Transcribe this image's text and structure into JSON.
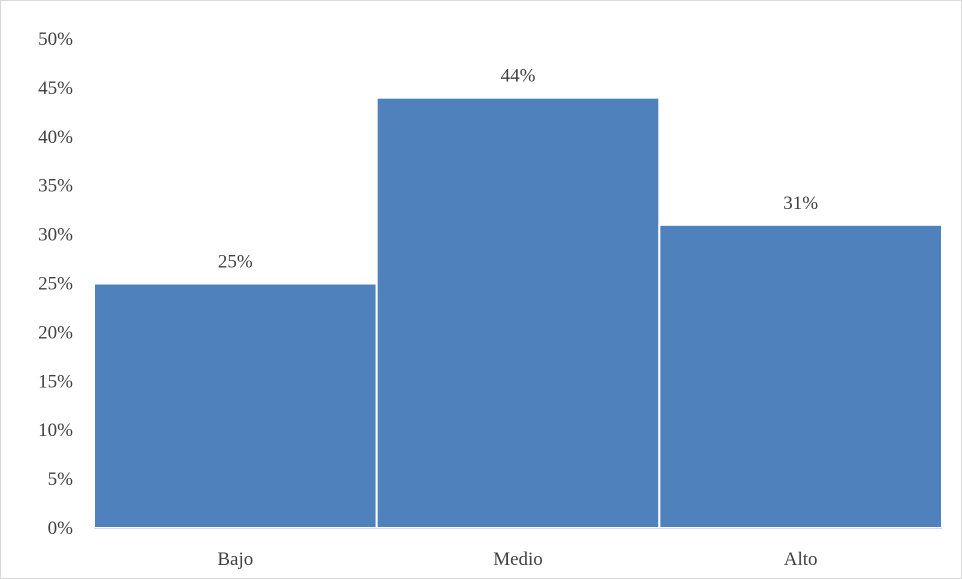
{
  "chart_data": {
    "type": "bar",
    "title": "",
    "xlabel": "",
    "ylabel": "",
    "categories": [
      "Bajo",
      "Medio",
      "Alto"
    ],
    "values": [
      25,
      44,
      31
    ],
    "data_labels": [
      "25%",
      "44%",
      "31%"
    ],
    "ylim": [
      0,
      50
    ],
    "y_ticks": [
      0,
      5,
      10,
      15,
      20,
      25,
      30,
      35,
      40,
      45,
      50
    ],
    "y_tick_labels": [
      "0%",
      "5%",
      "10%",
      "15%",
      "20%",
      "25%",
      "30%",
      "35%",
      "40%",
      "45%",
      "50%"
    ],
    "grid": false,
    "legend": "none",
    "colors": {
      "bar": "#4f81bd",
      "bar_edge": "#ffffff",
      "axis": "#d9d9d9",
      "text": "#404040"
    }
  }
}
